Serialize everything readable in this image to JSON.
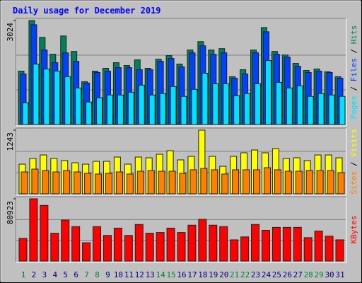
{
  "chart_data": [
    {
      "type": "bar",
      "title": "Daily usage for December 2019",
      "series": [
        {
          "name": "Hits",
          "color": "#00805c",
          "values": [
            1553,
            3024,
            2534,
            2043,
            2575,
            2125,
            1246,
            1553,
            1635,
            1798,
            1717,
            1880,
            1635,
            1900,
            2003,
            1757,
            2166,
            2411,
            2166,
            2207,
            1390,
            1594,
            2166,
            2820,
            2125,
            2023,
            1778,
            1573,
            1614,
            1533,
            1390
          ]
        },
        {
          "name": "Files",
          "color": "#0040ff",
          "values": [
            1471,
            2902,
            2166,
            1798,
            2084,
            1839,
            1206,
            1512,
            1553,
            1655,
            1655,
            1594,
            1594,
            1839,
            1921,
            1676,
            2084,
            2289,
            2043,
            2084,
            1349,
            1471,
            2084,
            2698,
            2043,
            1962,
            1696,
            1512,
            1553,
            1512,
            1349
          ]
        },
        {
          "name": "Pages",
          "color": "#00e0ff",
          "values": [
            634,
            1757,
            1614,
            1553,
            1390,
            1063,
            654,
            777,
            858,
            858,
            940,
            1144,
            858,
            899,
            1104,
            817,
            1022,
            1492,
            1185,
            1185,
            838,
            899,
            1185,
            1859,
            1226,
            1063,
            1124,
            817,
            899,
            858,
            817
          ]
        }
      ],
      "legend_separator": " / ",
      "ylim": [
        0,
        3024
      ],
      "yticks": [
        3024
      ]
    },
    {
      "type": "bar",
      "series": [
        {
          "name": "Visits",
          "color": "#ffff00",
          "values": [
            580,
            690,
            759,
            690,
            649,
            607,
            580,
            635,
            635,
            718,
            580,
            718,
            704,
            773,
            842,
            663,
            732,
            1243,
            732,
            538,
            732,
            801,
            856,
            801,
            884,
            690,
            704,
            649,
            759,
            759,
            704
          ]
        },
        {
          "name": "Sites",
          "color": "#ff8000",
          "values": [
            428,
            483,
            456,
            428,
            456,
            428,
            401,
            387,
            401,
            428,
            387,
            442,
            456,
            442,
            442,
            401,
            470,
            497,
            470,
            387,
            470,
            470,
            470,
            511,
            470,
            442,
            442,
            456,
            456,
            456,
            415
          ]
        }
      ],
      "legend_separator": " / ",
      "ylim": [
        0,
        1243
      ],
      "yticks": [
        1243
      ]
    },
    {
      "type": "bar",
      "categories": [
        "1",
        "2",
        "3",
        "4",
        "5",
        "6",
        "7",
        "8",
        "9",
        "10",
        "11",
        "12",
        "13",
        "14",
        "15",
        "16",
        "17",
        "18",
        "19",
        "20",
        "21",
        "22",
        "23",
        "24",
        "25",
        "26",
        "27",
        "28",
        "29",
        "30",
        "31"
      ],
      "category_colors": [
        "#008040",
        "#000080",
        "#000080",
        "#000080",
        "#000080",
        "#000080",
        "#008040",
        "#008040",
        "#000080",
        "#000080",
        "#000080",
        "#000080",
        "#000080",
        "#008040",
        "#008040",
        "#000080",
        "#000080",
        "#000080",
        "#000080",
        "#000080",
        "#008040",
        "#008040",
        "#000080",
        "#000080",
        "#000080",
        "#000080",
        "#000080",
        "#008040",
        "#008040",
        "#000080",
        "#000080"
      ],
      "series": [
        {
          "name": "KBytes",
          "color": "#ff0000",
          "values": [
            29500,
            80923,
            72350,
            36180,
            53310,
            44740,
            23800,
            44740,
            33320,
            42840,
            33320,
            47600,
            36180,
            37130,
            42840,
            37130,
            46650,
            54260,
            46650,
            44740,
            27610,
            31420,
            47600,
            39980,
            43790,
            43790,
            43790,
            30460,
            39030,
            32370,
            27610
          ]
        }
      ],
      "ylim": [
        0,
        80923
      ],
      "yticks": [
        80923
      ]
    }
  ]
}
